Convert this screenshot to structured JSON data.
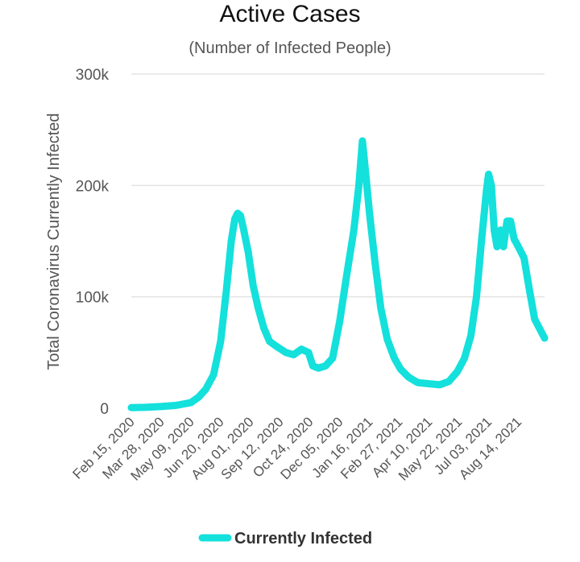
{
  "chart_data": {
    "type": "line",
    "title": "Active Cases",
    "subtitle": "(Number of Infected People)",
    "ylabel": "Total Coronavirus Currently Infected",
    "xlabel": "",
    "ylim": [
      0,
      300000
    ],
    "yticks": [
      0,
      100000,
      200000,
      300000
    ],
    "ytick_labels": [
      "0",
      "100k",
      "200k",
      "300k"
    ],
    "x_start": "Feb 15, 2020",
    "x_end": "Sep 20, 2021",
    "xtick_labels": [
      "Feb 15, 2020",
      "Mar 28, 2020",
      "May 09, 2020",
      "Jun 20, 2020",
      "Aug 01, 2020",
      "Sep 12, 2020",
      "Oct 24, 2020",
      "Dec 05, 2020",
      "Jan 16, 2021",
      "Feb 27, 2021",
      "Apr 10, 2021",
      "May 22, 2021",
      "Jul 03, 2021",
      "Aug 14, 2021"
    ],
    "grid": true,
    "legend_position": "bottom",
    "series": [
      {
        "name": "Currently Infected",
        "color": "#14e0dc",
        "points": [
          [
            "Feb 15, 2020",
            500
          ],
          [
            "Mar 06, 2020",
            800
          ],
          [
            "Mar 28, 2020",
            1500
          ],
          [
            "Apr 18, 2020",
            2500
          ],
          [
            "May 09, 2020",
            5000
          ],
          [
            "May 20, 2020",
            10000
          ],
          [
            "May 30, 2020",
            17000
          ],
          [
            "Jun 10, 2020",
            30000
          ],
          [
            "Jun 20, 2020",
            60000
          ],
          [
            "Jun 28, 2020",
            105000
          ],
          [
            "Jul 05, 2020",
            150000
          ],
          [
            "Jul 10, 2020",
            170000
          ],
          [
            "Jul 14, 2020",
            175000
          ],
          [
            "Jul 18, 2020",
            173000
          ],
          [
            "Jul 22, 2020",
            162000
          ],
          [
            "Jul 29, 2020",
            140000
          ],
          [
            "Aug 05, 2020",
            110000
          ],
          [
            "Aug 12, 2020",
            90000
          ],
          [
            "Aug 20, 2020",
            72000
          ],
          [
            "Aug 28, 2020",
            60000
          ],
          [
            "Sep 08, 2020",
            55000
          ],
          [
            "Sep 20, 2020",
            50000
          ],
          [
            "Oct 01, 2020",
            48000
          ],
          [
            "Oct 12, 2020",
            53000
          ],
          [
            "Oct 22, 2020",
            50000
          ],
          [
            "Oct 28, 2020",
            38000
          ],
          [
            "Nov 05, 2020",
            36000
          ],
          [
            "Nov 15, 2020",
            38000
          ],
          [
            "Nov 25, 2020",
            45000
          ],
          [
            "Dec 05, 2020",
            78000
          ],
          [
            "Dec 15, 2020",
            120000
          ],
          [
            "Dec 25, 2020",
            160000
          ],
          [
            "Jan 01, 2021",
            200000
          ],
          [
            "Jan 06, 2021",
            240000
          ],
          [
            "Jan 10, 2021",
            215000
          ],
          [
            "Jan 16, 2021",
            175000
          ],
          [
            "Jan 24, 2021",
            130000
          ],
          [
            "Feb 01, 2021",
            90000
          ],
          [
            "Feb 10, 2021",
            62000
          ],
          [
            "Feb 20, 2021",
            45000
          ],
          [
            "Mar 01, 2021",
            35000
          ],
          [
            "Mar 12, 2021",
            28000
          ],
          [
            "Mar 25, 2021",
            23000
          ],
          [
            "Apr 10, 2021",
            22000
          ],
          [
            "Apr 25, 2021",
            21000
          ],
          [
            "May 08, 2021",
            24000
          ],
          [
            "May 20, 2021",
            33000
          ],
          [
            "May 30, 2021",
            45000
          ],
          [
            "Jun 08, 2021",
            65000
          ],
          [
            "Jun 16, 2021",
            100000
          ],
          [
            "Jun 23, 2021",
            150000
          ],
          [
            "Jun 30, 2021",
            195000
          ],
          [
            "Jul 03, 2021",
            210000
          ],
          [
            "Jul 07, 2021",
            200000
          ],
          [
            "Jul 11, 2021",
            160000
          ],
          [
            "Jul 15, 2021",
            145000
          ],
          [
            "Jul 20, 2021",
            160000
          ],
          [
            "Jul 24, 2021",
            145000
          ],
          [
            "Jul 29, 2021",
            168000
          ],
          [
            "Aug 03, 2021",
            168000
          ],
          [
            "Aug 08, 2021",
            152000
          ],
          [
            "Aug 14, 2021",
            145000
          ],
          [
            "Aug 22, 2021",
            135000
          ],
          [
            "Aug 30, 2021",
            105000
          ],
          [
            "Sep 06, 2021",
            80000
          ],
          [
            "Sep 20, 2021",
            63000
          ]
        ]
      }
    ]
  }
}
